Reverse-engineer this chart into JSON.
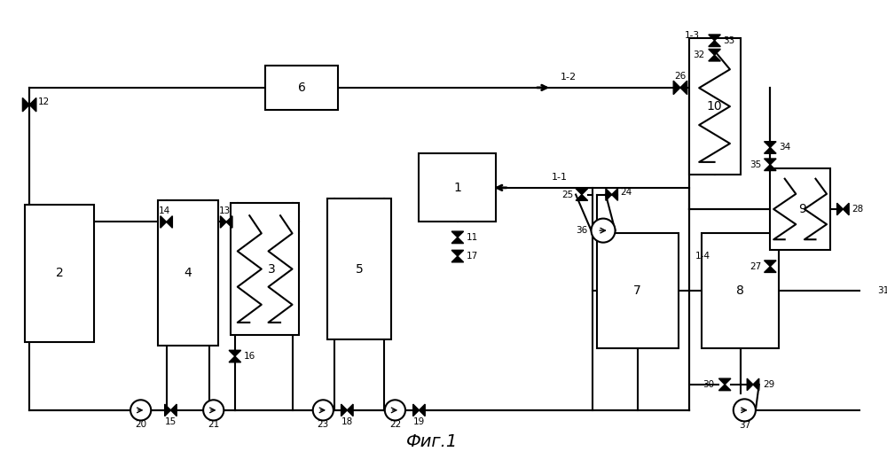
{
  "title": "Фиг.1",
  "bg": "#ffffff",
  "lc": "#000000",
  "lw": 1.5,
  "fig_w": 10.0,
  "fig_h": 5.27
}
